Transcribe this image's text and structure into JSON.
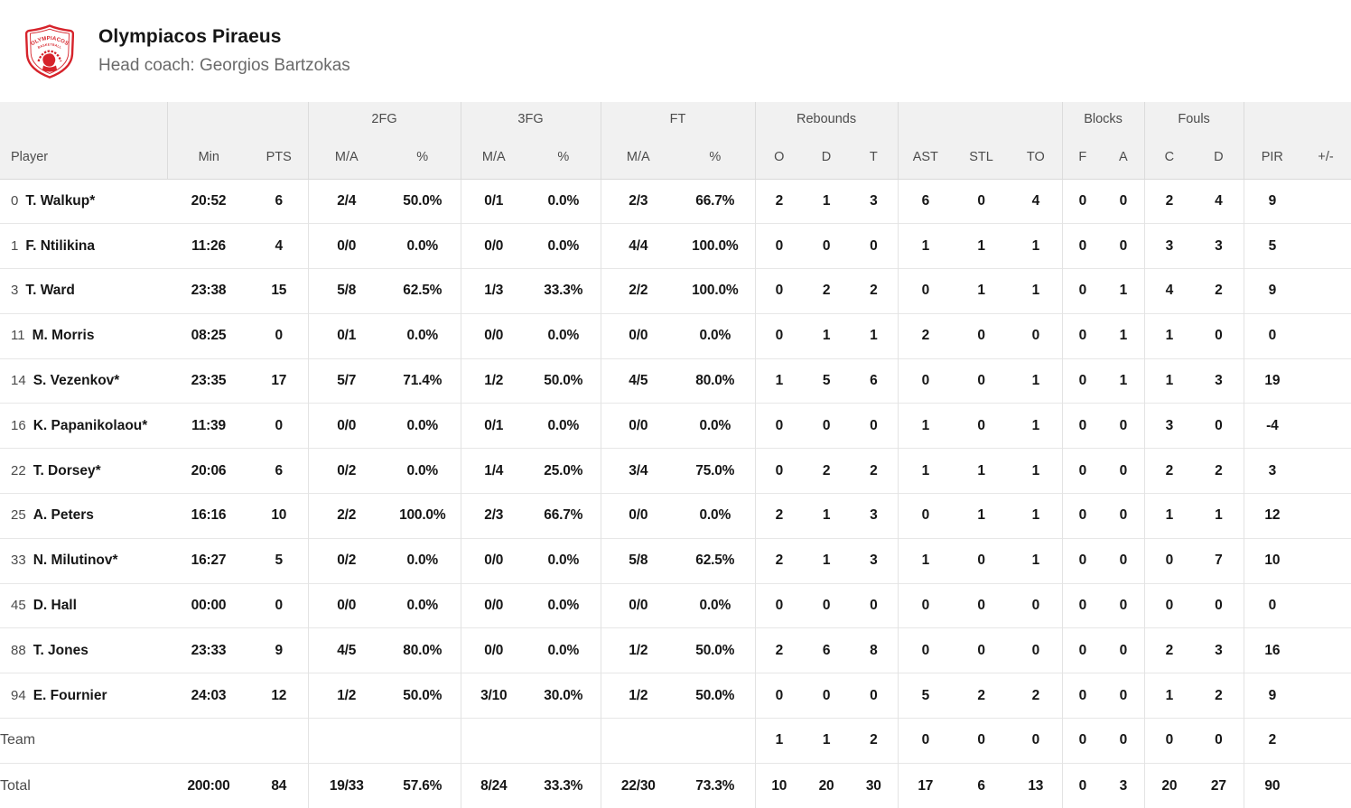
{
  "colors": {
    "accent_red": "#d6232b",
    "header_bg": "#f1f1f1",
    "text_dark": "#161616",
    "text_gray": "#4c4c4c"
  },
  "header": {
    "team_name": "Olympiacos Piraeus",
    "coach_line": "Head coach: Georgios Bartzokas"
  },
  "logo": {
    "line1": "OLYMPIACOS",
    "line2": "BASKETBALL"
  },
  "table": {
    "groups": [
      {
        "label": "",
        "span": 1
      },
      {
        "label": "",
        "span": 2
      },
      {
        "label": "2FG",
        "span": 2
      },
      {
        "label": "3FG",
        "span": 2
      },
      {
        "label": "FT",
        "span": 2
      },
      {
        "label": "Rebounds",
        "span": 3
      },
      {
        "label": "",
        "span": 3
      },
      {
        "label": "Blocks",
        "span": 2
      },
      {
        "label": "Fouls",
        "span": 2
      },
      {
        "label": "",
        "span": 2
      }
    ],
    "columns": [
      "Player",
      "Min",
      "PTS",
      "M/A",
      "%",
      "M/A",
      "%",
      "M/A",
      "%",
      "O",
      "D",
      "T",
      "AST",
      "STL",
      "TO",
      "F",
      "A",
      "C",
      "D",
      "PIR",
      "+/-"
    ],
    "rows": [
      {
        "number": "0",
        "name": "T. Walkup*",
        "stats": [
          "20:52",
          "6",
          "2/4",
          "50.0%",
          "0/1",
          "0.0%",
          "2/3",
          "66.7%",
          "2",
          "1",
          "3",
          "6",
          "0",
          "4",
          "0",
          "0",
          "2",
          "4",
          "9",
          ""
        ]
      },
      {
        "number": "1",
        "name": "F. Ntilikina",
        "stats": [
          "11:26",
          "4",
          "0/0",
          "0.0%",
          "0/0",
          "0.0%",
          "4/4",
          "100.0%",
          "0",
          "0",
          "0",
          "1",
          "1",
          "1",
          "0",
          "0",
          "3",
          "3",
          "5",
          ""
        ]
      },
      {
        "number": "3",
        "name": "T. Ward",
        "stats": [
          "23:38",
          "15",
          "5/8",
          "62.5%",
          "1/3",
          "33.3%",
          "2/2",
          "100.0%",
          "0",
          "2",
          "2",
          "0",
          "1",
          "1",
          "0",
          "1",
          "4",
          "2",
          "9",
          ""
        ]
      },
      {
        "number": "11",
        "name": "M. Morris",
        "stats": [
          "08:25",
          "0",
          "0/1",
          "0.0%",
          "0/0",
          "0.0%",
          "0/0",
          "0.0%",
          "0",
          "1",
          "1",
          "2",
          "0",
          "0",
          "0",
          "1",
          "1",
          "0",
          "0",
          ""
        ]
      },
      {
        "number": "14",
        "name": "S. Vezenkov*",
        "stats": [
          "23:35",
          "17",
          "5/7",
          "71.4%",
          "1/2",
          "50.0%",
          "4/5",
          "80.0%",
          "1",
          "5",
          "6",
          "0",
          "0",
          "1",
          "0",
          "1",
          "1",
          "3",
          "19",
          ""
        ]
      },
      {
        "number": "16",
        "name": "K. Papanikolaou*",
        "stats": [
          "11:39",
          "0",
          "0/0",
          "0.0%",
          "0/1",
          "0.0%",
          "0/0",
          "0.0%",
          "0",
          "0",
          "0",
          "1",
          "0",
          "1",
          "0",
          "0",
          "3",
          "0",
          "-4",
          ""
        ]
      },
      {
        "number": "22",
        "name": "T. Dorsey*",
        "stats": [
          "20:06",
          "6",
          "0/2",
          "0.0%",
          "1/4",
          "25.0%",
          "3/4",
          "75.0%",
          "0",
          "2",
          "2",
          "1",
          "1",
          "1",
          "0",
          "0",
          "2",
          "2",
          "3",
          ""
        ]
      },
      {
        "number": "25",
        "name": "A. Peters",
        "stats": [
          "16:16",
          "10",
          "2/2",
          "100.0%",
          "2/3",
          "66.7%",
          "0/0",
          "0.0%",
          "2",
          "1",
          "3",
          "0",
          "1",
          "1",
          "0",
          "0",
          "1",
          "1",
          "12",
          ""
        ]
      },
      {
        "number": "33",
        "name": "N. Milutinov*",
        "stats": [
          "16:27",
          "5",
          "0/2",
          "0.0%",
          "0/0",
          "0.0%",
          "5/8",
          "62.5%",
          "2",
          "1",
          "3",
          "1",
          "0",
          "1",
          "0",
          "0",
          "0",
          "7",
          "10",
          ""
        ]
      },
      {
        "number": "45",
        "name": "D. Hall",
        "stats": [
          "00:00",
          "0",
          "0/0",
          "0.0%",
          "0/0",
          "0.0%",
          "0/0",
          "0.0%",
          "0",
          "0",
          "0",
          "0",
          "0",
          "0",
          "0",
          "0",
          "0",
          "0",
          "0",
          ""
        ]
      },
      {
        "number": "88",
        "name": "T. Jones",
        "stats": [
          "23:33",
          "9",
          "4/5",
          "80.0%",
          "0/0",
          "0.0%",
          "1/2",
          "50.0%",
          "2",
          "6",
          "8",
          "0",
          "0",
          "0",
          "0",
          "0",
          "2",
          "3",
          "16",
          ""
        ]
      },
      {
        "number": "94",
        "name": "E. Fournier",
        "stats": [
          "24:03",
          "12",
          "1/2",
          "50.0%",
          "3/10",
          "30.0%",
          "1/2",
          "50.0%",
          "0",
          "0",
          "0",
          "5",
          "2",
          "2",
          "0",
          "0",
          "1",
          "2",
          "9",
          ""
        ]
      }
    ],
    "team_row": {
      "label": "Team",
      "stats": [
        "",
        "",
        "",
        "",
        "",
        "",
        "",
        "",
        "1",
        "1",
        "2",
        "0",
        "0",
        "0",
        "0",
        "0",
        "0",
        "0",
        "2",
        ""
      ]
    },
    "total_row": {
      "label": "Total",
      "stats": [
        "200:00",
        "84",
        "19/33",
        "57.6%",
        "8/24",
        "33.3%",
        "22/30",
        "73.3%",
        "10",
        "20",
        "30",
        "17",
        "6",
        "13",
        "0",
        "3",
        "20",
        "27",
        "90",
        ""
      ]
    }
  }
}
